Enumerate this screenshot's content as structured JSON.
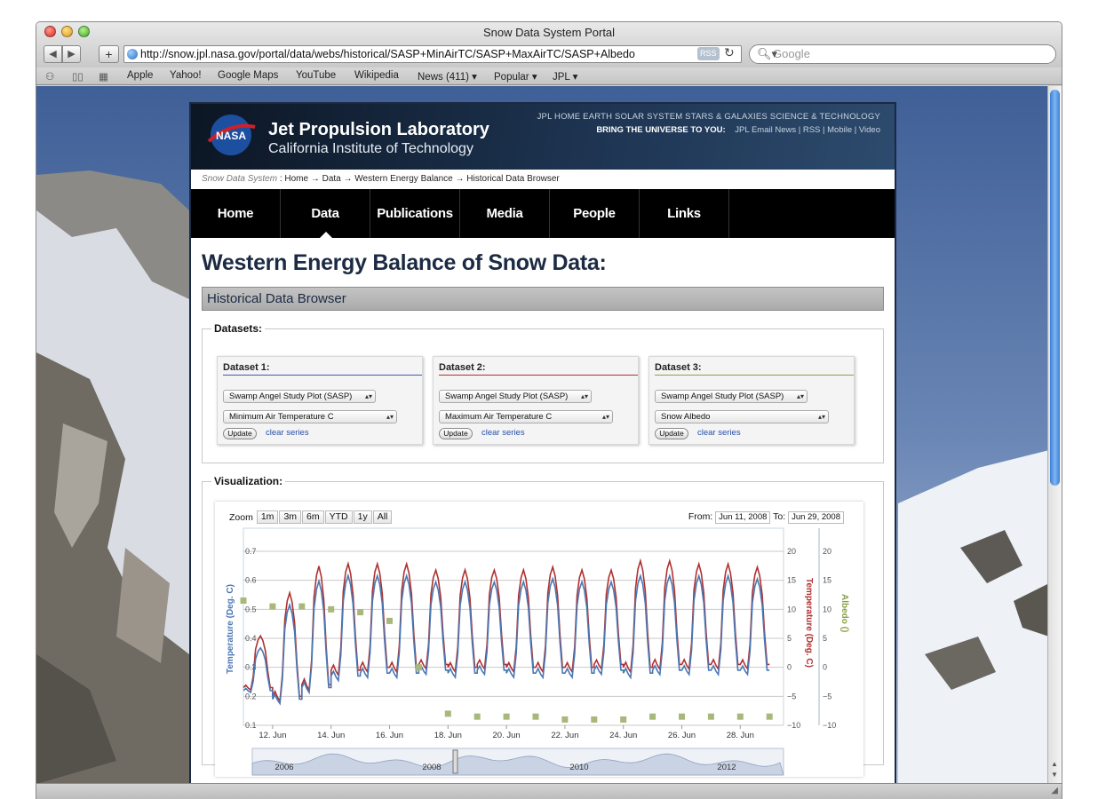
{
  "browser": {
    "window_title": "Snow Data System Portal",
    "url": "http://snow.jpl.nasa.gov/portal/data/webs/historical/SASP+MinAirTC/SASP+MaxAirTC/SASP+Albedo",
    "rss_label": "RSS",
    "search_placeholder": "Google",
    "bookmarks": [
      "Apple",
      "Yahoo!",
      "Google Maps",
      "YouTube",
      "Wikipedia",
      "News (411) ▾",
      "Popular ▾",
      "JPL ▾"
    ]
  },
  "header": {
    "org_name": "Jet Propulsion Laboratory",
    "org_sub": "California Institute of Technology",
    "nasa_label": "NASA",
    "top_links": "JPL HOME    EARTH    SOLAR SYSTEM    STARS & GALAXIES    SCIENCE & TECHNOLOGY",
    "bring_label": "BRING THE UNIVERSE TO YOU:",
    "sub_links": "JPL Email News   |   RSS   |   Mobile   |   Video"
  },
  "breadcrumb": {
    "root": "Snow Data System",
    "trail": " : Home → Data → Western Energy Balance → Historical Data Browser"
  },
  "nav": {
    "items": [
      "Home",
      "Data",
      "Publications",
      "Media",
      "People",
      "Links"
    ]
  },
  "main": {
    "title": "Western Energy Balance of Snow Data:",
    "subtitle": "Historical Data Browser",
    "datasets_legend": "Datasets:",
    "visualization_legend": "Visualization:"
  },
  "datasets": [
    {
      "title": "Dataset 1:",
      "site": "Swamp Angel Study Plot (SASP)",
      "variable": "Minimum Air Temperature C",
      "update": "Update",
      "clear": "clear series",
      "color": "#3a5fa8"
    },
    {
      "title": "Dataset 2:",
      "site": "Swamp Angel Study Plot (SASP)",
      "variable": "Maximum Air Temperature C",
      "update": "Update",
      "clear": "clear series",
      "color": "#b03030"
    },
    {
      "title": "Dataset 3:",
      "site": "Swamp Angel Study Plot (SASP)",
      "variable": "Snow Albedo",
      "update": "Update",
      "clear": "clear series",
      "color": "#8aa24a"
    }
  ],
  "chart_controls": {
    "zoom_label": "Zoom",
    "zoom_buttons": [
      "1m",
      "3m",
      "6m",
      "YTD",
      "1y",
      "All"
    ],
    "from_label": "From:",
    "from_value": "Jun 11, 2008",
    "to_label": "To:",
    "to_value": "Jun 29, 2008"
  },
  "chart_data": {
    "type": "line",
    "x_tick_labels": [
      "12. Jun",
      "14. Jun",
      "16. Jun",
      "18. Jun",
      "20. Jun",
      "22. Jun",
      "24. Jun",
      "26. Jun",
      "28. Jun"
    ],
    "left_axis": {
      "label": "Temperature (Deg. C)",
      "ticks": [
        0.1,
        0.2,
        0.3,
        0.4,
        0.5,
        0.6,
        0.7
      ],
      "range": [
        0.1,
        0.7
      ]
    },
    "right_axis_1": {
      "label": "Temperature (Deg. C)",
      "ticks": [
        -10,
        -5,
        0,
        5,
        10,
        15,
        20
      ],
      "range": [
        -10,
        20
      ]
    },
    "right_axis_2": {
      "label": "Albedo ()",
      "ticks": [
        -10,
        -5,
        0,
        5,
        10,
        15,
        20
      ],
      "range": [
        -10,
        20
      ]
    },
    "series": [
      {
        "name": "Minimum Air Temperature C",
        "color": "#4a78b4",
        "daily_low_c": [
          -4,
          -5.5,
          -3.5,
          -1.5,
          -1,
          -1,
          -0.5,
          -1,
          -0.5,
          -1,
          -1,
          -1,
          -0.5,
          -1,
          -0.5,
          -0.5,
          -0.5,
          -0.5
        ],
        "daily_high_c": [
          3,
          10,
          14,
          15,
          15,
          15,
          14,
          14,
          14,
          14,
          14.5,
          14,
          14,
          15,
          15,
          15,
          15,
          14.5
        ]
      },
      {
        "name": "Maximum Air Temperature C",
        "color": "#b03030",
        "daily_low_c": [
          -3.5,
          -5,
          -3,
          -0.5,
          0,
          0,
          0.5,
          0,
          0.5,
          0,
          0,
          0,
          0.5,
          0,
          0.5,
          0.5,
          0.5,
          0.5
        ],
        "daily_high_c": [
          5,
          12,
          16.5,
          17,
          17,
          17,
          16,
          16,
          16,
          16,
          16.5,
          16,
          16,
          17.5,
          17.5,
          17,
          17,
          16.5
        ]
      },
      {
        "name": "Snow Albedo",
        "color": "#a7b87a",
        "dates": [
          "11. Jun",
          "12. Jun",
          "13. Jun",
          "14. Jun",
          "15. Jun",
          "16. Jun",
          "17. Jun",
          "18. Jun",
          "19. Jun",
          "20. Jun",
          "21. Jun",
          "22. Jun",
          "23. Jun",
          "24. Jun",
          "25. Jun",
          "26. Jun",
          "27. Jun",
          "28. Jun",
          "29. Jun"
        ],
        "values": [
          0.53,
          0.51,
          0.51,
          0.5,
          0.49,
          0.46,
          0.3,
          0.14,
          0.13,
          0.13,
          0.13,
          0.12,
          0.12,
          0.12,
          0.13,
          0.13,
          0.13,
          0.13,
          0.13
        ]
      }
    ],
    "navigator_labels": [
      "2006",
      "2008",
      "2010",
      "2012"
    ]
  }
}
